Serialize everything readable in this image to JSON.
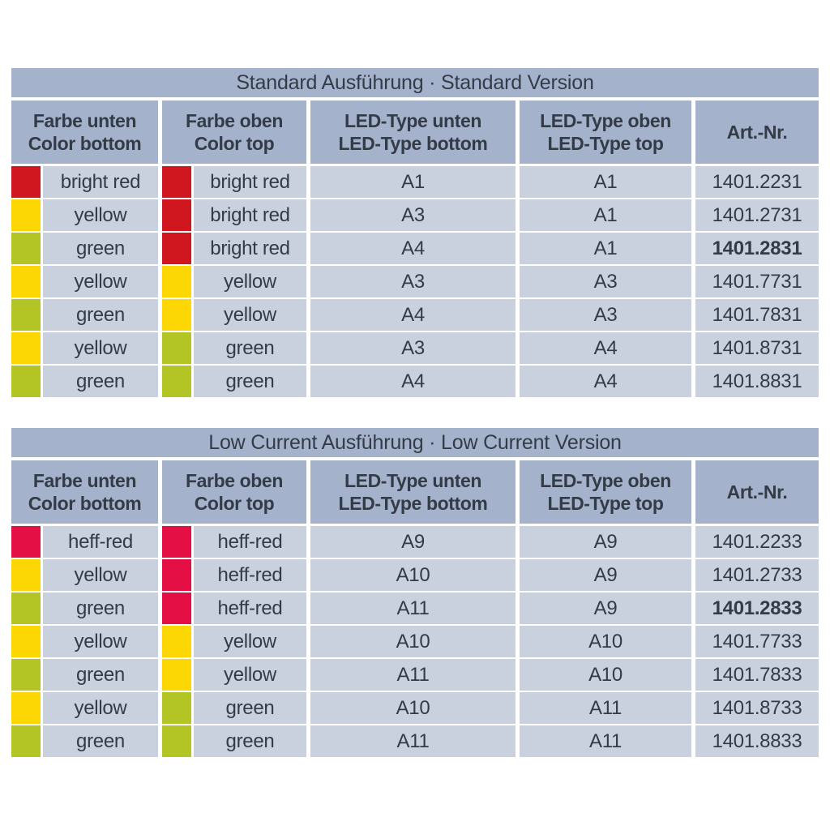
{
  "colors": {
    "band": "#a4b2cb",
    "cell": "#c9d1df",
    "text": "#333b47",
    "bright_red": "#d0161f",
    "heff_red": "#e30f45",
    "yellow": "#fdd704",
    "green": "#b2c524"
  },
  "column_headers": [
    {
      "line1": "Farbe unten",
      "line2": "Color bottom"
    },
    {
      "line1": "Farbe oben",
      "line2": "Color top"
    },
    {
      "line1": "LED-Type unten",
      "line2": "LED-Type bottom"
    },
    {
      "line1": "LED-Type oben",
      "line2": "LED-Type top"
    },
    {
      "line1": "Art.-Nr.",
      "line2": ""
    }
  ],
  "tables": [
    {
      "title": "Standard Ausführung · Standard Version",
      "rows": [
        {
          "color_bottom": "bright red",
          "swatch_bottom": "bright_red",
          "color_top": "bright red",
          "swatch_top": "bright_red",
          "led_bottom": "A1",
          "led_top": "A1",
          "art_nr": "1401.2231",
          "art_bold": false
        },
        {
          "color_bottom": "yellow",
          "swatch_bottom": "yellow",
          "color_top": "bright red",
          "swatch_top": "bright_red",
          "led_bottom": "A3",
          "led_top": "A1",
          "art_nr": "1401.2731",
          "art_bold": false
        },
        {
          "color_bottom": "green",
          "swatch_bottom": "green",
          "color_top": "bright red",
          "swatch_top": "bright_red",
          "led_bottom": "A4",
          "led_top": "A1",
          "art_nr": "1401.2831",
          "art_bold": true
        },
        {
          "color_bottom": "yellow",
          "swatch_bottom": "yellow",
          "color_top": "yellow",
          "swatch_top": "yellow",
          "led_bottom": "A3",
          "led_top": "A3",
          "art_nr": "1401.7731",
          "art_bold": false
        },
        {
          "color_bottom": "green",
          "swatch_bottom": "green",
          "color_top": "yellow",
          "swatch_top": "yellow",
          "led_bottom": "A4",
          "led_top": "A3",
          "art_nr": "1401.7831",
          "art_bold": false
        },
        {
          "color_bottom": "yellow",
          "swatch_bottom": "yellow",
          "color_top": "green",
          "swatch_top": "green",
          "led_bottom": "A3",
          "led_top": "A4",
          "art_nr": "1401.8731",
          "art_bold": false
        },
        {
          "color_bottom": "green",
          "swatch_bottom": "green",
          "color_top": "green",
          "swatch_top": "green",
          "led_bottom": "A4",
          "led_top": "A4",
          "art_nr": "1401.8831",
          "art_bold": false
        }
      ]
    },
    {
      "title": "Low Current Ausführung · Low Current Version",
      "rows": [
        {
          "color_bottom": "heff-red",
          "swatch_bottom": "heff_red",
          "color_top": "heff-red",
          "swatch_top": "heff_red",
          "led_bottom": "A9",
          "led_top": "A9",
          "art_nr": "1401.2233",
          "art_bold": false
        },
        {
          "color_bottom": "yellow",
          "swatch_bottom": "yellow",
          "color_top": "heff-red",
          "swatch_top": "heff_red",
          "led_bottom": "A10",
          "led_top": "A9",
          "art_nr": "1401.2733",
          "art_bold": false
        },
        {
          "color_bottom": "green",
          "swatch_bottom": "green",
          "color_top": "heff-red",
          "swatch_top": "heff_red",
          "led_bottom": "A11",
          "led_top": "A9",
          "art_nr": "1401.2833",
          "art_bold": true
        },
        {
          "color_bottom": "yellow",
          "swatch_bottom": "yellow",
          "color_top": "yellow",
          "swatch_top": "yellow",
          "led_bottom": "A10",
          "led_top": "A10",
          "art_nr": "1401.7733",
          "art_bold": false
        },
        {
          "color_bottom": "green",
          "swatch_bottom": "green",
          "color_top": "yellow",
          "swatch_top": "yellow",
          "led_bottom": "A11",
          "led_top": "A10",
          "art_nr": "1401.7833",
          "art_bold": false
        },
        {
          "color_bottom": "yellow",
          "swatch_bottom": "yellow",
          "color_top": "green",
          "swatch_top": "green",
          "led_bottom": "A10",
          "led_top": "A11",
          "art_nr": "1401.8733",
          "art_bold": false
        },
        {
          "color_bottom": "green",
          "swatch_bottom": "green",
          "color_top": "green",
          "swatch_top": "green",
          "led_bottom": "A11",
          "led_top": "A11",
          "art_nr": "1401.8833",
          "art_bold": false
        }
      ]
    }
  ]
}
